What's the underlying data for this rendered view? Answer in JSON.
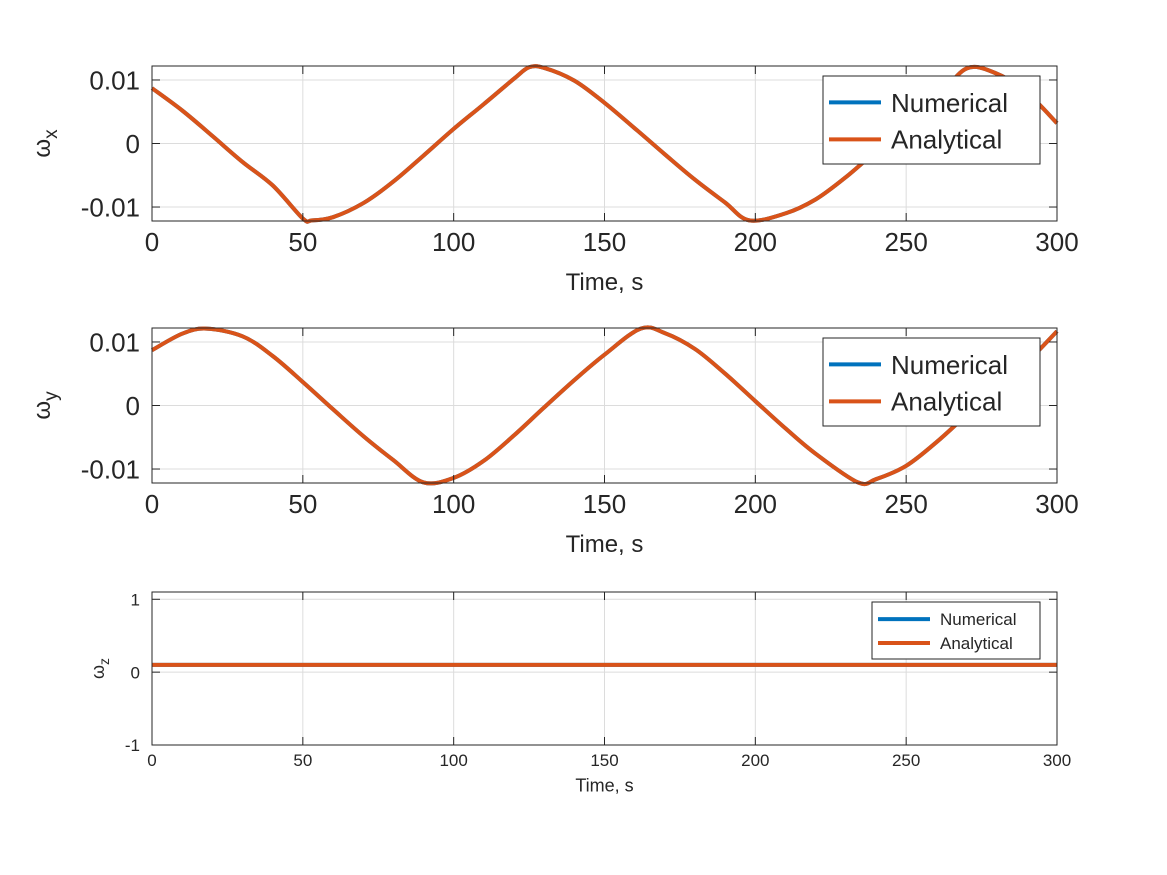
{
  "colors": {
    "numerical": "#0072BD",
    "analytical": "#D95319",
    "grid": "#dcdcdc",
    "axis": "#262626",
    "background": "#ffffff"
  },
  "chart_data": [
    {
      "type": "line",
      "ylabel": "ω",
      "ylabel_sub": "x",
      "xlabel": "Time, s",
      "xlim": [
        0,
        300
      ],
      "ylim": [
        -0.0122,
        0.0122
      ],
      "xticks": [
        0,
        50,
        100,
        150,
        200,
        250,
        300
      ],
      "xtick_labels": [
        "0",
        "50",
        "100",
        "150",
        "200",
        "250",
        "300"
      ],
      "yticks": [
        -0.01,
        0,
        0.01
      ],
      "ytick_labels": [
        "-0.01",
        "0",
        "0.01"
      ],
      "grid": true,
      "legend": "top-right",
      "series": [
        {
          "name": "Numerical",
          "x": [
            0,
            10,
            20,
            30,
            40,
            50,
            53,
            60,
            70,
            80,
            90,
            100,
            110,
            120,
            125,
            130,
            140,
            150,
            160,
            170,
            180,
            190,
            198,
            210,
            220,
            230,
            240,
            250,
            260,
            270,
            280,
            290,
            300
          ],
          "y": [
            0.0087,
            0.0052,
            0.0012,
            -0.0029,
            -0.0066,
            -0.0118,
            -0.0121,
            -0.0116,
            -0.0094,
            -0.006,
            -0.0019,
            0.0023,
            0.0062,
            0.0102,
            0.012,
            0.0119,
            0.0099,
            0.0064,
            0.0024,
            -0.0017,
            -0.0057,
            -0.0093,
            -0.0121,
            -0.011,
            -0.0088,
            -0.0053,
            -0.0012,
            0.003,
            0.0069,
            0.0118,
            0.011,
            0.008,
            0.0032
          ]
        },
        {
          "name": "Analytical",
          "x": [
            0,
            10,
            20,
            30,
            40,
            50,
            53,
            60,
            70,
            80,
            90,
            100,
            110,
            120,
            125,
            130,
            140,
            150,
            160,
            170,
            180,
            190,
            198,
            210,
            220,
            230,
            240,
            250,
            260,
            270,
            280,
            290,
            300
          ],
          "y": [
            0.0087,
            0.0052,
            0.0012,
            -0.0029,
            -0.0066,
            -0.0118,
            -0.0121,
            -0.0116,
            -0.0094,
            -0.006,
            -0.0019,
            0.0023,
            0.0062,
            0.0102,
            0.012,
            0.0119,
            0.0099,
            0.0064,
            0.0024,
            -0.0017,
            -0.0057,
            -0.0093,
            -0.0121,
            -0.011,
            -0.0088,
            -0.0053,
            -0.0012,
            0.003,
            0.0069,
            0.0118,
            0.011,
            0.008,
            0.0032
          ]
        }
      ]
    },
    {
      "type": "line",
      "ylabel": "ω",
      "ylabel_sub": "y",
      "xlabel": "Time, s",
      "xlim": [
        0,
        300
      ],
      "ylim": [
        -0.0122,
        0.0122
      ],
      "xticks": [
        0,
        50,
        100,
        150,
        200,
        250,
        300
      ],
      "xtick_labels": [
        "0",
        "50",
        "100",
        "150",
        "200",
        "250",
        "300"
      ],
      "yticks": [
        -0.01,
        0,
        0.01
      ],
      "ytick_labels": [
        "-0.01",
        "0",
        "0.01"
      ],
      "grid": true,
      "legend": "top-right",
      "series": [
        {
          "name": "Numerical",
          "x": [
            0,
            10,
            18,
            30,
            40,
            50,
            60,
            70,
            80,
            90,
            100,
            110,
            120,
            130,
            140,
            150,
            162,
            170,
            180,
            190,
            200,
            210,
            220,
            234,
            240,
            250,
            260,
            270,
            280,
            290,
            300
          ],
          "y": [
            0.0087,
            0.0113,
            0.0121,
            0.0109,
            0.0078,
            0.0037,
            -0.0006,
            -0.0048,
            -0.0086,
            -0.0121,
            -0.0114,
            -0.0087,
            -0.0047,
            -0.0003,
            0.004,
            0.008,
            0.0121,
            0.0114,
            0.0089,
            0.005,
            0.0007,
            -0.0036,
            -0.0076,
            -0.0121,
            -0.0116,
            -0.0095,
            -0.0058,
            -0.0015,
            0.0027,
            0.0068,
            0.0117
          ]
        },
        {
          "name": "Analytical",
          "x": [
            0,
            10,
            18,
            30,
            40,
            50,
            60,
            70,
            80,
            90,
            100,
            110,
            120,
            130,
            140,
            150,
            162,
            170,
            180,
            190,
            200,
            210,
            220,
            234,
            240,
            250,
            260,
            270,
            280,
            290,
            300
          ],
          "y": [
            0.0087,
            0.0113,
            0.0121,
            0.0109,
            0.0078,
            0.0037,
            -0.0006,
            -0.0048,
            -0.0086,
            -0.0121,
            -0.0114,
            -0.0087,
            -0.0047,
            -0.0003,
            0.004,
            0.008,
            0.0121,
            0.0114,
            0.0089,
            0.005,
            0.0007,
            -0.0036,
            -0.0076,
            -0.0121,
            -0.0116,
            -0.0095,
            -0.0058,
            -0.0015,
            0.0027,
            0.0068,
            0.0117
          ]
        }
      ]
    },
    {
      "type": "line",
      "ylabel": "ω",
      "ylabel_sub": "z",
      "xlabel": "Time, s",
      "xlim": [
        0,
        300
      ],
      "ylim": [
        -1,
        1.1
      ],
      "xticks": [
        0,
        50,
        100,
        150,
        200,
        250,
        300
      ],
      "xtick_labels": [
        "0",
        "50",
        "100",
        "150",
        "200",
        "250",
        "300"
      ],
      "yticks": [
        -1,
        0,
        1
      ],
      "ytick_labels": [
        "-1",
        "0",
        "1"
      ],
      "grid": true,
      "legend": "top-right",
      "series": [
        {
          "name": "Numerical",
          "x": [
            0,
            300
          ],
          "y": [
            0.1,
            0.1
          ]
        },
        {
          "name": "Analytical",
          "x": [
            0,
            300
          ],
          "y": [
            0.1,
            0.1
          ]
        }
      ]
    }
  ]
}
